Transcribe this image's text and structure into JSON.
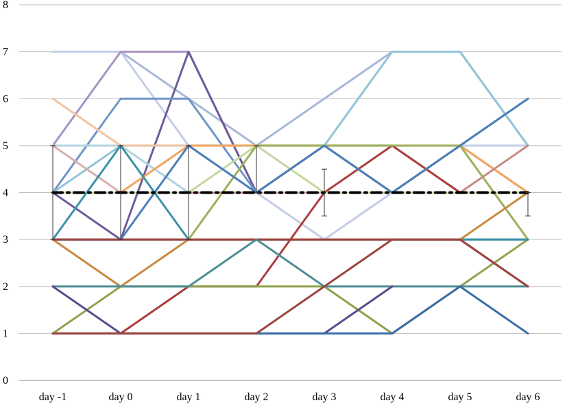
{
  "chart_data": {
    "type": "line",
    "title": "",
    "xlabel": "",
    "ylabel": "",
    "categories": [
      "day -1",
      "day 0",
      "day 1",
      "day 2",
      "day 3",
      "day 4",
      "day 5",
      "day 6"
    ],
    "ylim": [
      0,
      8
    ],
    "yticks": [
      "0",
      "1",
      "2",
      "3",
      "4",
      "5",
      "6",
      "7",
      "8"
    ],
    "grid": true,
    "legend": "none",
    "series": [
      {
        "color": "#a9b8d8",
        "values": [
          7,
          7,
          6,
          5,
          6,
          7,
          7,
          5
        ]
      },
      {
        "color": "#c4cde6",
        "values": [
          7,
          7,
          5,
          4,
          3,
          4,
          5,
          5
        ]
      },
      {
        "color": "#a693c2",
        "values": [
          5,
          7,
          7,
          4,
          5,
          4,
          5,
          4
        ]
      },
      {
        "color": "#6f5b9a",
        "values": [
          4,
          3,
          7,
          4,
          4,
          4,
          4,
          4
        ]
      },
      {
        "color": "#7095c9",
        "values": [
          4,
          6,
          6,
          4,
          5,
          4,
          5,
          6
        ]
      },
      {
        "color": "#92c4d8",
        "values": [
          4,
          5,
          5,
          5,
          5,
          7,
          7,
          5
        ]
      },
      {
        "color": "#b0d3e0",
        "values": [
          5,
          5,
          4,
          4,
          4,
          4,
          4,
          4
        ]
      },
      {
        "color": "#f3c4a0",
        "values": [
          6,
          5,
          5,
          5,
          5,
          5,
          5,
          4
        ]
      },
      {
        "color": "#f0a562",
        "values": [
          4,
          4,
          5,
          5,
          5,
          4,
          5,
          4
        ]
      },
      {
        "color": "#d8b0ae",
        "values": [
          5,
          4,
          4,
          4,
          4,
          4,
          4,
          4
        ]
      },
      {
        "color": "#c98a86",
        "values": [
          4,
          4,
          4,
          4,
          5,
          5,
          4,
          5
        ]
      },
      {
        "color": "#a93f3d",
        "values": [
          1,
          1,
          2,
          2,
          4,
          5,
          4,
          4
        ]
      },
      {
        "color": "#c5d79e",
        "values": [
          4,
          4,
          4,
          5,
          4,
          4,
          4,
          4
        ]
      },
      {
        "color": "#8fa24e",
        "values": [
          1,
          2,
          2,
          2,
          2,
          1,
          2,
          3
        ]
      },
      {
        "color": "#9ab05a",
        "values": [
          3,
          3,
          3,
          5,
          5,
          5,
          5,
          3
        ]
      },
      {
        "color": "#4a7fb8",
        "values": [
          3,
          3,
          5,
          4,
          5,
          4,
          5,
          6
        ]
      },
      {
        "color": "#3f6aa8",
        "values": [
          3,
          3,
          3,
          3,
          3,
          3,
          3,
          3
        ]
      },
      {
        "color": "#3b93a6",
        "values": [
          3,
          5,
          3,
          3,
          3,
          3,
          3,
          3
        ]
      },
      {
        "color": "#c9893f",
        "values": [
          3,
          2,
          3,
          3,
          3,
          3,
          3,
          4
        ]
      },
      {
        "color": "#a04440",
        "values": [
          3,
          3,
          3,
          3,
          3,
          3,
          3,
          2
        ]
      },
      {
        "color": "#4d8d94",
        "values": [
          2,
          2,
          2,
          3,
          2,
          2,
          2,
          2
        ]
      },
      {
        "color": "#5a4c8e",
        "values": [
          2,
          1,
          1,
          1,
          1,
          2,
          null,
          null
        ]
      },
      {
        "color": "#3a6ea8",
        "values": [
          1,
          1,
          1,
          1,
          1,
          1,
          2,
          1
        ]
      },
      {
        "color": "#9a453f",
        "values": [
          1,
          1,
          1,
          1,
          2,
          3,
          3,
          2
        ]
      },
      {
        "color": "#000000",
        "style": "dash-dot",
        "values": [
          4,
          4,
          4,
          4,
          4,
          4,
          4,
          4
        ]
      }
    ],
    "error_bars": [
      {
        "x": "day -1",
        "low": 3,
        "high": 5
      },
      {
        "x": "day 0",
        "low": 3,
        "high": 5
      },
      {
        "x": "day 1",
        "low": 3,
        "high": 5
      },
      {
        "x": "day 2",
        "low": 4,
        "high": 5
      },
      {
        "x": "day 3",
        "low": 3.5,
        "high": 4.5
      },
      {
        "x": "day 6",
        "low": 3.5,
        "high": 4
      }
    ]
  }
}
